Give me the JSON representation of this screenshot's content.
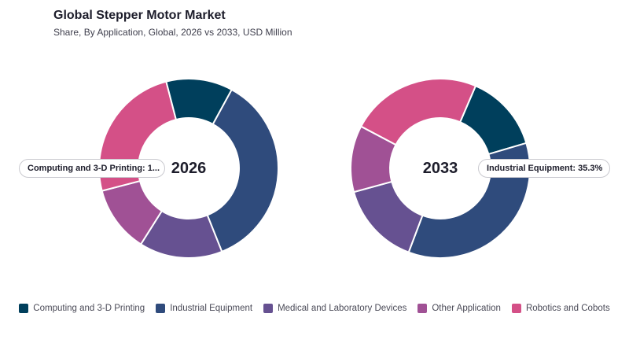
{
  "header": {
    "title": "Global Stepper Motor Market",
    "subtitle": "Share, By Application, Global, 2026 vs 2033, USD Million"
  },
  "tooltips": {
    "left": "Computing and 3-D Printing: 1...",
    "right": "Industrial Equipment: 35.3%"
  },
  "legend": [
    {
      "label": "Computing and 3-D Printing",
      "color": "#003f5c"
    },
    {
      "label": "Industrial Equipment",
      "color": "#2f4b7c"
    },
    {
      "label": "Medical and Laboratory Devices",
      "color": "#665191"
    },
    {
      "label": "Other Application",
      "color": "#a05195"
    },
    {
      "label": "Robotics and Cobots",
      "color": "#d45087"
    }
  ],
  "chart_data": [
    {
      "type": "pie",
      "center_label": "2026",
      "unit": "%",
      "slices": [
        {
          "name": "Industrial Equipment",
          "value": 36.0,
          "color": "#2f4b7c"
        },
        {
          "name": "Medical and Laboratory Devices",
          "value": 15.0,
          "color": "#665191"
        },
        {
          "name": "Other Application",
          "value": 12.0,
          "color": "#a05195"
        },
        {
          "name": "Robotics and Cobots",
          "value": 25.0,
          "color": "#d45087"
        },
        {
          "name": "Computing and 3-D Printing",
          "value": 12.0,
          "color": "#003f5c"
        }
      ]
    },
    {
      "type": "pie",
      "center_label": "2033",
      "unit": "%",
      "slices": [
        {
          "name": "Computing and 3-D Printing",
          "value": 14.0,
          "color": "#003f5c"
        },
        {
          "name": "Industrial Equipment",
          "value": 35.3,
          "color": "#2f4b7c"
        },
        {
          "name": "Medical and Laboratory Devices",
          "value": 15.0,
          "color": "#665191"
        },
        {
          "name": "Other Application",
          "value": 12.0,
          "color": "#a05195"
        },
        {
          "name": "Robotics and Cobots",
          "value": 23.7,
          "color": "#d45087"
        }
      ]
    }
  ]
}
